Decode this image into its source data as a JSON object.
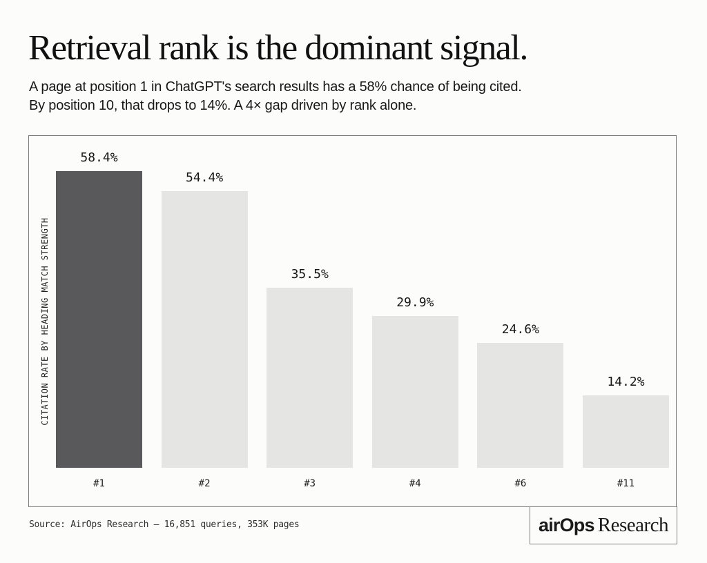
{
  "header": {
    "title": "Retrieval rank is the dominant signal.",
    "subtitle_line1": "A page at position 1 in ChatGPT's search results has a 58% chance of being cited.",
    "subtitle_line2": "By position 10, that drops to 14%. A 4× gap driven by rank alone."
  },
  "chart_data": {
    "type": "bar",
    "categories": [
      "#1",
      "#2",
      "#3",
      "#4",
      "#6",
      "#11"
    ],
    "values": [
      58.4,
      54.4,
      35.5,
      29.9,
      24.6,
      14.2
    ],
    "value_labels": [
      "58.4%",
      "54.4%",
      "35.5%",
      "29.9%",
      "24.6%",
      "14.2%"
    ],
    "title": "",
    "xlabel": "",
    "ylabel": "CITATION RATE BY HEADING MATCH STRENGTH",
    "ylim": [
      0,
      62
    ],
    "grid": false,
    "legend_position": "none",
    "highlight_index": 0,
    "colors": {
      "highlight_bar": "#59595b",
      "default_bar": "#e5e5e3",
      "background": "#fcfcfb",
      "border": "#7c7c7c"
    }
  },
  "footer": {
    "source": "Source: AirOps Research — 16,851 queries, 353K pages",
    "logo": {
      "brand": "airOps",
      "suffix": "Research"
    }
  }
}
